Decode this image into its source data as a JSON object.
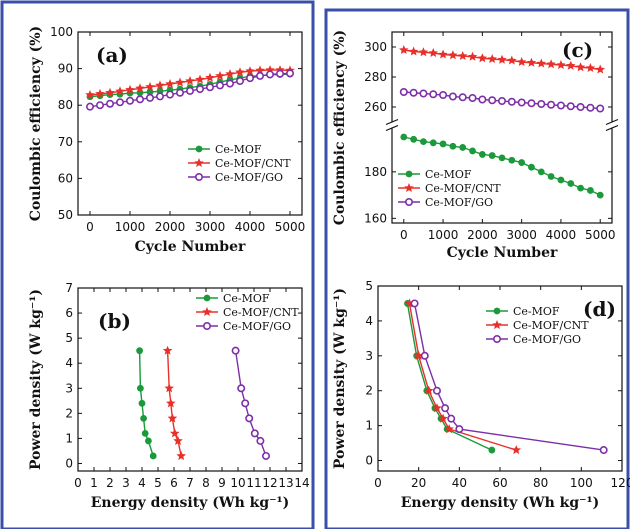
{
  "colors": {
    "ce_mof": "#1a9a3a",
    "ce_mof_cnt": "#e8302a",
    "ce_mof_go": "#7d2ea8",
    "frame": "#3a4fa8"
  },
  "chart_data": [
    {
      "panel": "a",
      "type": "line",
      "panel_label": "(a)",
      "xlabel": "Cycle Number",
      "ylabel": "Coulombic efficiency (%)",
      "xlim": [
        -300,
        5300
      ],
      "ylim": [
        50,
        100
      ],
      "xticks": [
        "0",
        "1000",
        "2000",
        "3000",
        "4000",
        "5000"
      ],
      "yticks": [
        "50",
        "60",
        "70",
        "80",
        "90",
        "100"
      ],
      "legend_position": "center-right",
      "x": [
        0,
        250,
        500,
        750,
        1000,
        1250,
        1500,
        1750,
        2000,
        2250,
        2500,
        2750,
        3000,
        3250,
        3500,
        3750,
        4000,
        4250,
        4500,
        4750,
        5000
      ],
      "series": [
        {
          "name": "Ce-MOF",
          "marker": "circle",
          "values": [
            82.3,
            82.6,
            82.9,
            83.0,
            83.3,
            83.4,
            83.6,
            83.8,
            84.1,
            84.4,
            84.8,
            85.2,
            85.7,
            86.3,
            86.9,
            87.4,
            87.9,
            88.1,
            88.3,
            88.4,
            88.5
          ]
        },
        {
          "name": "Ce-MOF/CNT",
          "marker": "star",
          "values": [
            82.8,
            83.1,
            83.4,
            83.8,
            84.2,
            84.6,
            85.0,
            85.4,
            85.8,
            86.2,
            86.6,
            87.0,
            87.5,
            88.0,
            88.5,
            89.0,
            89.3,
            89.5,
            89.6,
            89.6,
            89.5
          ]
        },
        {
          "name": "Ce-MOF/GO",
          "marker": "circle-open",
          "values": [
            79.6,
            80.0,
            80.4,
            80.8,
            81.2,
            81.6,
            82.0,
            82.4,
            82.9,
            83.4,
            83.9,
            84.4,
            84.9,
            85.4,
            85.9,
            86.6,
            87.4,
            88.0,
            88.4,
            88.6,
            88.7
          ]
        }
      ]
    },
    {
      "panel": "c",
      "type": "line",
      "panel_label": "(c)",
      "xlabel": "Cycle Number",
      "ylabel": "Coulombic efficiency (%)",
      "xlim": [
        -300,
        5300
      ],
      "axis_break": true,
      "ylim_lower": [
        158,
        198
      ],
      "ylim_upper": [
        250,
        310
      ],
      "xticks": [
        "0",
        "1000",
        "2000",
        "3000",
        "4000",
        "5000"
      ],
      "yticks_lower": [
        "160",
        "180"
      ],
      "yticks_upper": [
        "260",
        "280",
        "300"
      ],
      "legend_position": "center-left",
      "x": [
        0,
        250,
        500,
        750,
        1000,
        1250,
        1500,
        1750,
        2000,
        2250,
        2500,
        2750,
        3000,
        3250,
        3500,
        3750,
        4000,
        4250,
        4500,
        4750,
        5000
      ],
      "series": [
        {
          "name": "Ce-MOF",
          "marker": "circle",
          "values": [
            195,
            194,
            193,
            192.5,
            192,
            191,
            190.5,
            189,
            187.5,
            187,
            186,
            185,
            184,
            182,
            180,
            178,
            176.5,
            175,
            173,
            172,
            170
          ]
        },
        {
          "name": "Ce-MOF/CNT",
          "marker": "star",
          "values": [
            298,
            297,
            296.5,
            296,
            295,
            294.5,
            294,
            293.5,
            292.5,
            292,
            291.5,
            291,
            290,
            289.5,
            289,
            288.5,
            288,
            287.5,
            286.5,
            286,
            285
          ]
        },
        {
          "name": "Ce-MOF/GO",
          "marker": "circle-open",
          "values": [
            270,
            269.5,
            269,
            268.5,
            268,
            267,
            266.5,
            266,
            265,
            264.5,
            264,
            263.5,
            263,
            262.5,
            262,
            261.5,
            261,
            260.5,
            260,
            259.5,
            259
          ]
        }
      ]
    },
    {
      "panel": "b",
      "type": "line",
      "panel_label": "(b)",
      "xlabel": "Energy density (Wh kg⁻¹)",
      "ylabel": "Power density (W kg⁻¹)",
      "xlim": [
        0,
        14
      ],
      "ylim": [
        -0.3,
        7
      ],
      "xticks": [
        "0",
        "1",
        "2",
        "3",
        "4",
        "5",
        "6",
        "7",
        "8",
        "9",
        "10",
        "11",
        "12",
        "13",
        "14"
      ],
      "yticks": [
        "0",
        "1",
        "2",
        "3",
        "4",
        "5",
        "6",
        "7"
      ],
      "legend_position": "top-right",
      "series": [
        {
          "name": "Ce-MOF",
          "marker": "circle",
          "x": [
            3.85,
            3.9,
            4.0,
            4.1,
            4.2,
            4.4,
            4.7
          ],
          "y": [
            4.5,
            3.0,
            2.4,
            1.8,
            1.2,
            0.9,
            0.3
          ]
        },
        {
          "name": "Ce-MOF/CNT",
          "marker": "star",
          "x": [
            5.6,
            5.7,
            5.8,
            5.9,
            6.05,
            6.25,
            6.45
          ],
          "y": [
            4.5,
            3.0,
            2.4,
            1.8,
            1.2,
            0.9,
            0.3
          ]
        },
        {
          "name": "Ce-MOF/GO",
          "marker": "circle-open",
          "x": [
            9.85,
            10.2,
            10.45,
            10.7,
            11.05,
            11.4,
            11.75
          ],
          "y": [
            4.5,
            3.0,
            2.4,
            1.8,
            1.2,
            0.9,
            0.3
          ]
        }
      ]
    },
    {
      "panel": "d",
      "type": "line",
      "panel_label": "(d)",
      "xlabel": "Energy density (Wh kg⁻¹)",
      "ylabel": "Power density (W kg⁻¹)",
      "xlim": [
        0,
        120
      ],
      "ylim": [
        -0.3,
        5
      ],
      "xticks": [
        "0",
        "20",
        "40",
        "60",
        "80",
        "100",
        "120"
      ],
      "yticks": [
        "0",
        "1",
        "2",
        "3",
        "4",
        "5"
      ],
      "legend_position": "top-right",
      "series": [
        {
          "name": "Ce-MOF",
          "marker": "circle",
          "x": [
            14.5,
            19,
            24,
            28,
            31,
            34,
            56
          ],
          "y": [
            4.5,
            3.0,
            2.0,
            1.5,
            1.2,
            0.9,
            0.3
          ]
        },
        {
          "name": "Ce-MOF/CNT",
          "marker": "star",
          "x": [
            15.5,
            20,
            25,
            29,
            32,
            35,
            68
          ],
          "y": [
            4.5,
            3.0,
            2.0,
            1.5,
            1.2,
            0.9,
            0.3
          ]
        },
        {
          "name": "Ce-MOF/GO",
          "marker": "circle-open",
          "x": [
            18,
            23,
            29,
            33,
            36,
            40,
            111
          ],
          "y": [
            4.5,
            3.0,
            2.0,
            1.5,
            1.2,
            0.9,
            0.3
          ]
        }
      ]
    }
  ]
}
